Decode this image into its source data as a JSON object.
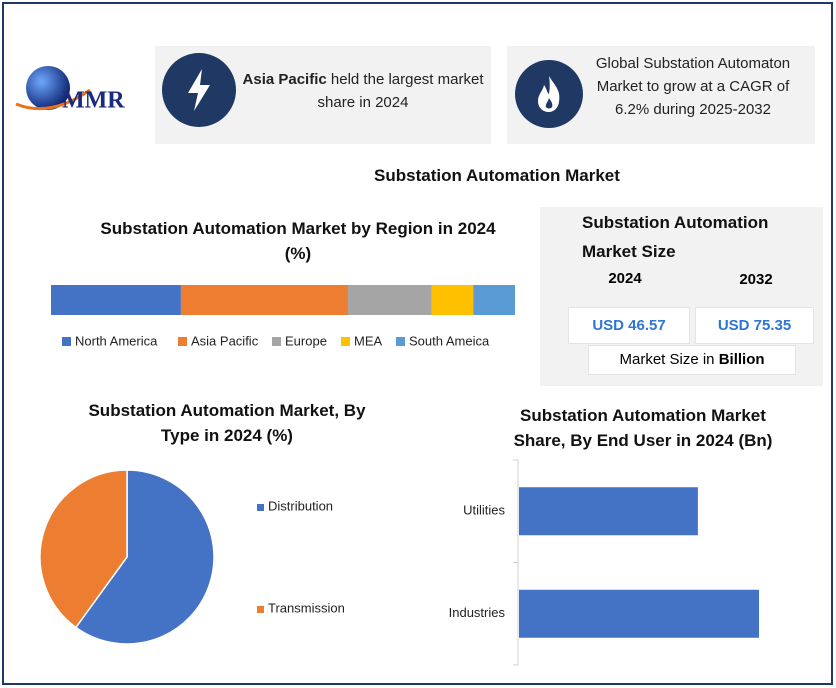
{
  "logo": "MMR",
  "header": {
    "box1": {
      "bold": "Asia Pacific",
      "text": " held the largest market share in 2024"
    },
    "box2": {
      "text": "Global Substation Automaton Market to grow at a CAGR of 6.2% during 2025-2032"
    }
  },
  "title": "Substation Automation Market",
  "market_size": {
    "title": "Substation Automation Market Size",
    "years": [
      "2024",
      "2032"
    ],
    "values": [
      "USD 46.57",
      "USD 75.35"
    ],
    "note": "Market Size in ",
    "note_bold": "Billion"
  },
  "chart_data": [
    {
      "type": "stacked-bar",
      "title": "Substation Automation Market by Region in 2024 (%)",
      "series": [
        {
          "name": "North America",
          "color": "#4472c4",
          "values": [
            28
          ]
        },
        {
          "name": "Asia Pacific",
          "color": "#ed7d31",
          "values": [
            36
          ]
        },
        {
          "name": "Europe",
          "color": "#a5a5a5",
          "values": [
            18
          ]
        },
        {
          "name": "MEA",
          "color": "#ffc000",
          "values": [
            9
          ]
        },
        {
          "name": "South Ameica",
          "color": "#5b9bd5",
          "values": [
            9
          ]
        }
      ]
    },
    {
      "type": "pie",
      "title": "Substation Automation Market, By Type in 2024 (%)",
      "categories": [
        "Distribution",
        "Transmission"
      ],
      "values": [
        60,
        40
      ],
      "colors": [
        "#4472c4",
        "#ed7d31"
      ]
    },
    {
      "type": "bar",
      "orientation": "horizontal",
      "title": "Substation Automation Market Share, By  End User in 2024 (Bn)",
      "categories": [
        "Utilities",
        "Industries"
      ],
      "values": [
        19.9,
        26.7
      ],
      "color": "#4472c4"
    }
  ]
}
